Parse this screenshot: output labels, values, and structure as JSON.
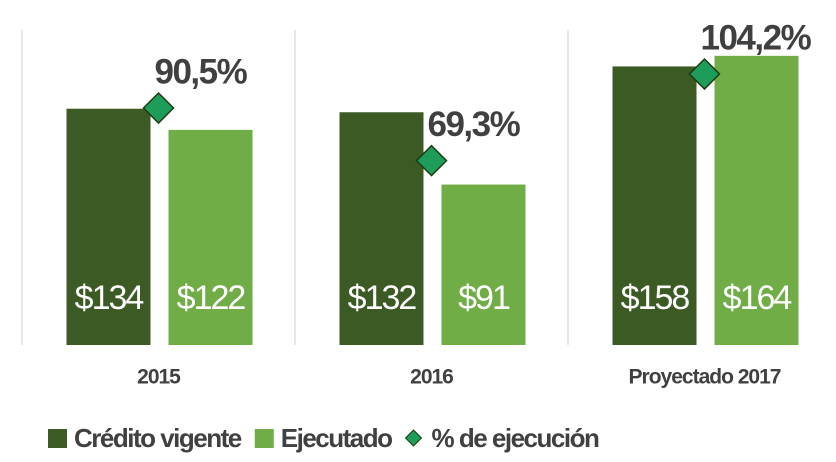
{
  "chart_data": {
    "type": "bar",
    "categories": [
      "2015",
      "2016",
      "Proyectado 2017"
    ],
    "series": [
      {
        "name": "Crédito vigente",
        "color": "#3b5a24",
        "values": [
          134,
          132,
          158
        ],
        "value_labels": [
          "$134",
          "$132",
          "$158"
        ]
      },
      {
        "name": "Ejecutado",
        "color": "#70ad47",
        "values": [
          122,
          91,
          164
        ],
        "value_labels": [
          "$122",
          "$91",
          "$164"
        ]
      },
      {
        "name": "% de ejecución",
        "color": "#1e9c5a",
        "axis": "y2",
        "marker": "diamond",
        "values": [
          90.5,
          69.3,
          104.2
        ],
        "value_labels": [
          "90,5%",
          "69,3%",
          "104,2%"
        ]
      }
    ],
    "ylim": [
      0,
      190
    ],
    "y2lim": [
      -5,
      130
    ]
  }
}
